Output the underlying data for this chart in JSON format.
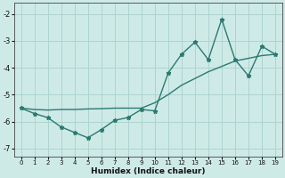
{
  "x": [
    0,
    1,
    2,
    3,
    4,
    5,
    6,
    7,
    8,
    9,
    10,
    11,
    12,
    13,
    14,
    15,
    16,
    17,
    18,
    19
  ],
  "y_zigzag": [
    -5.5,
    -5.7,
    -5.85,
    -6.2,
    -6.4,
    -6.6,
    -6.3,
    -5.95,
    -5.85,
    -5.55,
    -5.6,
    -4.2,
    -3.5,
    -3.05,
    -3.7,
    -2.2,
    -3.7,
    -4.3,
    -3.2,
    -3.5
  ],
  "y_trend": [
    -5.5,
    -5.55,
    -5.57,
    -5.55,
    -5.55,
    -5.53,
    -5.52,
    -5.5,
    -5.5,
    -5.5,
    -5.3,
    -5.0,
    -4.65,
    -4.4,
    -4.15,
    -3.95,
    -3.75,
    -3.65,
    -3.55,
    -3.5
  ],
  "line_color": "#2a7a70",
  "bg_color": "#ceeae7",
  "grid_color": "#aed4d0",
  "xlabel": "Humidex (Indice chaleur)",
  "xlim": [
    -0.5,
    19.5
  ],
  "ylim": [
    -7.3,
    -1.6
  ],
  "yticks": [
    -7,
    -6,
    -5,
    -4,
    -3,
    -2
  ],
  "xticks": [
    0,
    1,
    2,
    3,
    4,
    5,
    6,
    7,
    8,
    9,
    10,
    11,
    12,
    13,
    14,
    15,
    16,
    17,
    18,
    19
  ],
  "marker": "*",
  "marker_size": 3.5,
  "linewidth": 1.0
}
